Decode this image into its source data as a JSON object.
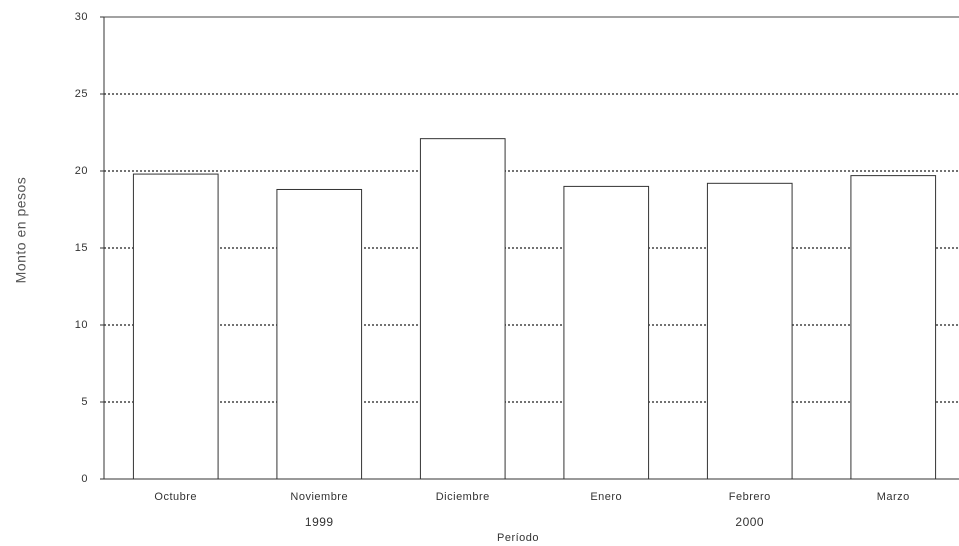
{
  "chart_data": {
    "type": "bar",
    "x_label": "Período",
    "y_label": "Monto en pesos",
    "categories": [
      "Octubre",
      "Noviembre",
      "Diciembre",
      "Enero",
      "Febrero",
      "Marzo"
    ],
    "x_groups": [
      "1999",
      "2000"
    ],
    "values": [
      19.8,
      18.8,
      22.1,
      19.0,
      19.2,
      19.7
    ],
    "color": "#ffffff",
    "ylim": [
      0,
      30
    ],
    "yticks": [
      0,
      5,
      10,
      15,
      20,
      25,
      30
    ],
    "grid": true
  }
}
